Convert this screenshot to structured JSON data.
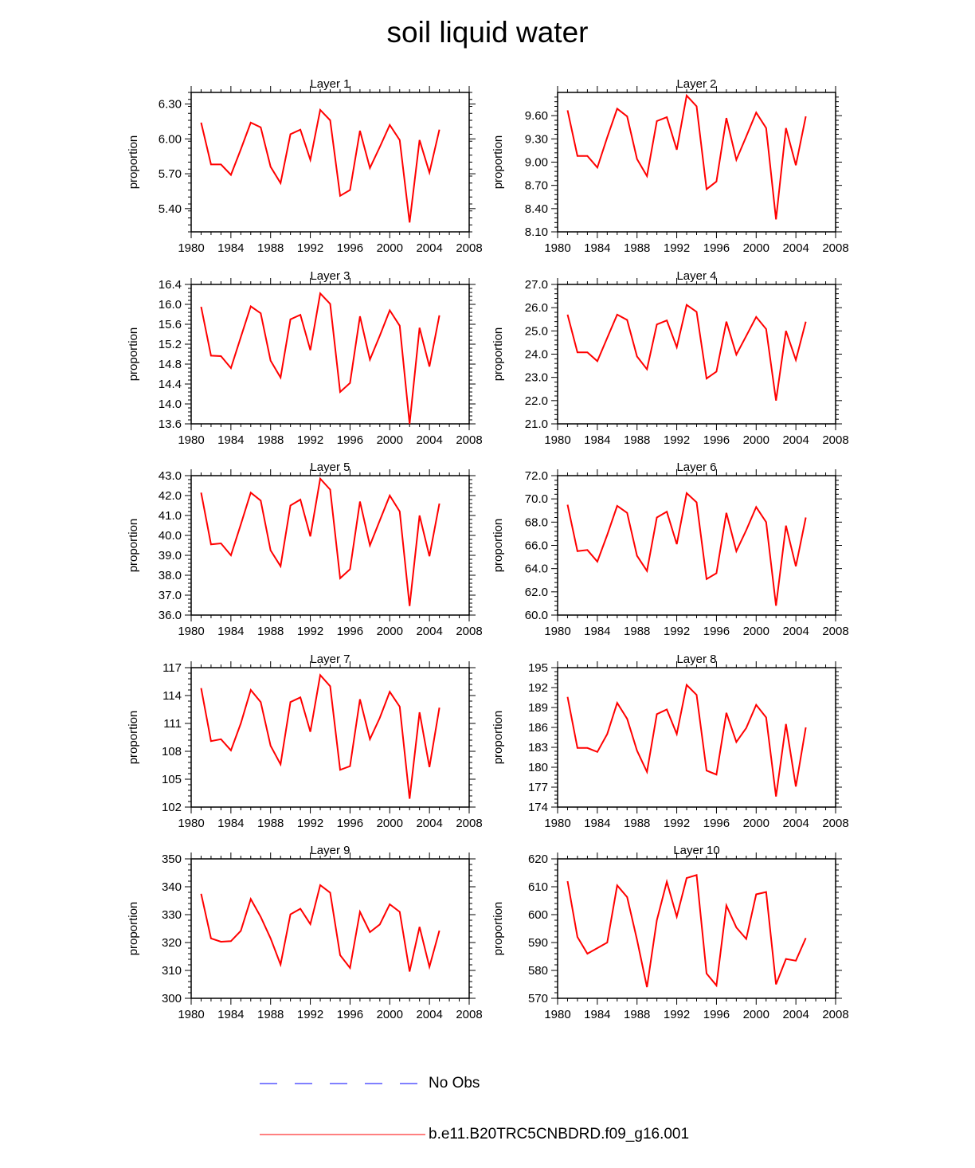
{
  "title": "soil liquid water",
  "chart_data": [
    {
      "type": "line",
      "title": "Layer 1",
      "xlabel": "",
      "ylabel": "proportion",
      "xlim": [
        1980,
        2008
      ],
      "xticks": [
        1980,
        1984,
        1988,
        1992,
        1996,
        2000,
        2004,
        2008
      ],
      "ylim": [
        5.2,
        6.4
      ],
      "yticks": [
        "5.40",
        "5.70",
        "6.00",
        "6.30"
      ],
      "series": [
        {
          "name": "b.e11.B20TRC5CNBDRD.f09_g16.001",
          "color": "#ff0000",
          "x": [
            1981,
            1982,
            1983,
            1984,
            1985,
            1986,
            1987,
            1988,
            1989,
            1990,
            1991,
            1992,
            1993,
            1994,
            1995,
            1996,
            1997,
            1998,
            1999,
            2000,
            2001,
            2002,
            2003,
            2004,
            2005
          ],
          "y": [
            6.14,
            5.78,
            5.78,
            5.69,
            5.91,
            6.14,
            6.1,
            5.76,
            5.62,
            6.04,
            6.08,
            5.82,
            6.25,
            6.16,
            5.51,
            5.56,
            6.07,
            5.75,
            5.93,
            6.12,
            5.99,
            5.28,
            5.99,
            5.71,
            6.08
          ]
        }
      ]
    },
    {
      "type": "line",
      "title": "Layer 2",
      "xlabel": "",
      "ylabel": "proportion",
      "xlim": [
        1980,
        2008
      ],
      "xticks": [
        1980,
        1984,
        1988,
        1992,
        1996,
        2000,
        2004,
        2008
      ],
      "ylim": [
        8.1,
        9.9
      ],
      "yticks": [
        "8.10",
        "8.40",
        "8.70",
        "9.00",
        "9.30",
        "9.60"
      ],
      "series": [
        {
          "name": "b.e11.B20TRC5CNBDRD.f09_g16.001",
          "color": "#ff0000",
          "x": [
            1981,
            1982,
            1983,
            1984,
            1985,
            1986,
            1987,
            1988,
            1989,
            1990,
            1991,
            1992,
            1993,
            1994,
            1995,
            1996,
            1997,
            1998,
            1999,
            2000,
            2001,
            2002,
            2003,
            2004,
            2005
          ],
          "y": [
            9.67,
            9.08,
            9.08,
            8.93,
            9.32,
            9.69,
            9.59,
            9.04,
            8.82,
            9.53,
            9.58,
            9.16,
            9.86,
            9.72,
            8.65,
            8.75,
            9.57,
            9.03,
            9.33,
            9.64,
            9.44,
            8.26,
            9.44,
            8.96,
            9.59
          ]
        }
      ]
    },
    {
      "type": "line",
      "title": "Layer 3",
      "xlabel": "",
      "ylabel": "proportion",
      "xlim": [
        1980,
        2008
      ],
      "xticks": [
        1980,
        1984,
        1988,
        1992,
        1996,
        2000,
        2004,
        2008
      ],
      "ylim": [
        13.6,
        16.4
      ],
      "yticks": [
        "13.6",
        "14.0",
        "14.4",
        "14.8",
        "15.2",
        "15.6",
        "16.0",
        "16.4"
      ],
      "series": [
        {
          "name": "b.e11.B20TRC5CNBDRD.f09_g16.001",
          "color": "#ff0000",
          "x": [
            1981,
            1982,
            1983,
            1984,
            1985,
            1986,
            1987,
            1988,
            1989,
            1990,
            1991,
            1992,
            1993,
            1994,
            1995,
            1996,
            1997,
            1998,
            1999,
            2000,
            2001,
            2002,
            2003,
            2004,
            2005
          ],
          "y": [
            15.95,
            14.97,
            14.96,
            14.72,
            15.34,
            15.96,
            15.82,
            14.87,
            14.53,
            15.7,
            15.79,
            15.08,
            16.22,
            16.01,
            14.24,
            14.42,
            15.76,
            14.89,
            15.37,
            15.88,
            15.57,
            13.6,
            15.53,
            14.75,
            15.78
          ]
        }
      ]
    },
    {
      "type": "line",
      "title": "Layer 4",
      "xlabel": "",
      "ylabel": "proportion",
      "xlim": [
        1980,
        2008
      ],
      "xticks": [
        1980,
        1984,
        1988,
        1992,
        1996,
        2000,
        2004,
        2008
      ],
      "ylim": [
        21.0,
        27.0
      ],
      "yticks": [
        "21.0",
        "22.0",
        "23.0",
        "24.0",
        "25.0",
        "26.0",
        "27.0"
      ],
      "series": [
        {
          "name": "b.e11.B20TRC5CNBDRD.f09_g16.001",
          "color": "#ff0000",
          "x": [
            1981,
            1982,
            1983,
            1984,
            1985,
            1986,
            1987,
            1988,
            1989,
            1990,
            1991,
            1992,
            1993,
            1994,
            1995,
            1996,
            1997,
            1998,
            1999,
            2000,
            2001,
            2002,
            2003,
            2004,
            2005
          ],
          "y": [
            25.7,
            24.08,
            24.08,
            23.7,
            24.7,
            25.7,
            25.47,
            23.9,
            23.35,
            25.28,
            25.45,
            24.3,
            26.12,
            25.82,
            22.95,
            23.25,
            25.4,
            23.98,
            24.78,
            25.6,
            25.08,
            22.0,
            25.0,
            23.75,
            25.4
          ]
        }
      ]
    },
    {
      "type": "line",
      "title": "Layer 5",
      "xlabel": "",
      "ylabel": "proportion",
      "xlim": [
        1980,
        2008
      ],
      "xticks": [
        1980,
        1984,
        1988,
        1992,
        1996,
        2000,
        2004,
        2008
      ],
      "ylim": [
        36.0,
        43.0
      ],
      "yticks": [
        "36.0",
        "37.0",
        "38.0",
        "39.0",
        "40.0",
        "41.0",
        "42.0",
        "43.0"
      ],
      "series": [
        {
          "name": "b.e11.B20TRC5CNBDRD.f09_g16.001",
          "color": "#ff0000",
          "x": [
            1981,
            1982,
            1983,
            1984,
            1985,
            1986,
            1987,
            1988,
            1989,
            1990,
            1991,
            1992,
            1993,
            1994,
            1995,
            1996,
            1997,
            1998,
            1999,
            2000,
            2001,
            2002,
            2003,
            2004,
            2005
          ],
          "y": [
            42.15,
            39.55,
            39.6,
            39.0,
            40.55,
            42.15,
            41.75,
            39.25,
            38.45,
            41.5,
            41.8,
            39.95,
            42.85,
            42.3,
            37.85,
            38.3,
            41.7,
            39.5,
            40.75,
            42.0,
            41.2,
            36.45,
            41.0,
            38.95,
            41.6
          ]
        }
      ]
    },
    {
      "type": "line",
      "title": "Layer 6",
      "xlabel": "",
      "ylabel": "proportion",
      "xlim": [
        1980,
        2008
      ],
      "xticks": [
        1980,
        1984,
        1988,
        1992,
        1996,
        2000,
        2004,
        2008
      ],
      "ylim": [
        60.0,
        72.0
      ],
      "yticks": [
        "60.0",
        "62.0",
        "64.0",
        "66.0",
        "68.0",
        "70.0",
        "72.0"
      ],
      "series": [
        {
          "name": "b.e11.B20TRC5CNBDRD.f09_g16.001",
          "color": "#ff0000",
          "x": [
            1981,
            1982,
            1983,
            1984,
            1985,
            1986,
            1987,
            1988,
            1989,
            1990,
            1991,
            1992,
            1993,
            1994,
            1995,
            1996,
            1997,
            1998,
            1999,
            2000,
            2001,
            2002,
            2003,
            2004,
            2005
          ],
          "y": [
            69.5,
            65.5,
            65.6,
            64.6,
            66.9,
            69.4,
            68.8,
            65.1,
            63.8,
            68.4,
            68.9,
            66.1,
            70.5,
            69.7,
            63.1,
            63.6,
            68.8,
            65.5,
            67.3,
            69.3,
            68.0,
            60.8,
            67.7,
            64.2,
            68.4
          ]
        }
      ]
    },
    {
      "type": "line",
      "title": "Layer 7",
      "xlabel": "",
      "ylabel": "proportion",
      "xlim": [
        1980,
        2008
      ],
      "xticks": [
        1980,
        1984,
        1988,
        1992,
        1996,
        2000,
        2004,
        2008
      ],
      "ylim": [
        102,
        117
      ],
      "yticks": [
        "102",
        "105",
        "108",
        "111",
        "114",
        "117"
      ],
      "series": [
        {
          "name": "b.e11.B20TRC5CNBDRD.f09_g16.001",
          "color": "#ff0000",
          "x": [
            1981,
            1982,
            1983,
            1984,
            1985,
            1986,
            1987,
            1988,
            1989,
            1990,
            1991,
            1992,
            1993,
            1994,
            1995,
            1996,
            1997,
            1998,
            1999,
            2000,
            2001,
            2002,
            2003,
            2004,
            2005
          ],
          "y": [
            114.8,
            109.1,
            109.3,
            108.1,
            111.0,
            114.6,
            113.3,
            108.6,
            106.6,
            113.3,
            113.8,
            110.1,
            116.2,
            115.0,
            106.0,
            106.4,
            113.6,
            109.3,
            111.6,
            114.4,
            112.8,
            102.9,
            112.2,
            106.3,
            112.7
          ]
        }
      ]
    },
    {
      "type": "line",
      "title": "Layer 8",
      "xlabel": "",
      "ylabel": "proportion",
      "xlim": [
        1980,
        2008
      ],
      "xticks": [
        1980,
        1984,
        1988,
        1992,
        1996,
        2000,
        2004,
        2008
      ],
      "ylim": [
        174,
        195
      ],
      "yticks": [
        "174",
        "177",
        "180",
        "183",
        "186",
        "189",
        "192",
        "195"
      ],
      "series": [
        {
          "name": "b.e11.B20TRC5CNBDRD.f09_g16.001",
          "color": "#ff0000",
          "x": [
            1981,
            1982,
            1983,
            1984,
            1985,
            1986,
            1987,
            1988,
            1989,
            1990,
            1991,
            1992,
            1993,
            1994,
            1995,
            1996,
            1997,
            1998,
            1999,
            2000,
            2001,
            2002,
            2003,
            2004,
            2005
          ],
          "y": [
            190.6,
            182.9,
            182.9,
            182.3,
            185.0,
            189.7,
            187.3,
            182.5,
            179.3,
            188.0,
            188.7,
            185.0,
            192.4,
            190.9,
            179.5,
            178.9,
            188.2,
            183.8,
            185.9,
            189.4,
            187.5,
            175.6,
            186.5,
            177.1,
            186.0
          ]
        }
      ]
    },
    {
      "type": "line",
      "title": "Layer 9",
      "xlabel": "",
      "ylabel": "proportion",
      "xlim": [
        1980,
        2008
      ],
      "xticks": [
        1980,
        1984,
        1988,
        1992,
        1996,
        2000,
        2004,
        2008
      ],
      "ylim": [
        300,
        350
      ],
      "yticks": [
        "300",
        "310",
        "320",
        "330",
        "340",
        "350"
      ],
      "series": [
        {
          "name": "b.e11.B20TRC5CNBDRD.f09_g16.001",
          "color": "#ff0000",
          "x": [
            1981,
            1982,
            1983,
            1984,
            1985,
            1986,
            1987,
            1988,
            1989,
            1990,
            1991,
            1992,
            1993,
            1994,
            1995,
            1996,
            1997,
            1998,
            1999,
            2000,
            2001,
            2002,
            2003,
            2004,
            2005
          ],
          "y": [
            337.5,
            321.5,
            320.3,
            320.5,
            324.2,
            335.6,
            329.2,
            321.5,
            312.1,
            330.1,
            332.1,
            326.6,
            340.6,
            337.9,
            315.5,
            310.9,
            331.0,
            323.7,
            326.5,
            333.7,
            331.0,
            309.6,
            325.6,
            311.3,
            324.3
          ]
        }
      ]
    },
    {
      "type": "line",
      "title": "Layer 10",
      "xlabel": "",
      "ylabel": "proportion",
      "xlim": [
        1980,
        2008
      ],
      "xticks": [
        1980,
        1984,
        1988,
        1992,
        1996,
        2000,
        2004,
        2008
      ],
      "ylim": [
        570,
        620
      ],
      "yticks": [
        "570",
        "580",
        "590",
        "600",
        "610",
        "620"
      ],
      "series": [
        {
          "name": "b.e11.B20TRC5CNBDRD.f09_g16.001",
          "color": "#ff0000",
          "x": [
            1981,
            1982,
            1983,
            1984,
            1985,
            1986,
            1987,
            1988,
            1989,
            1990,
            1991,
            1992,
            1993,
            1994,
            1995,
            1996,
            1997,
            1998,
            1999,
            2000,
            2001,
            2002,
            2003,
            2004,
            2005
          ],
          "y": [
            612.0,
            592.0,
            586.0,
            588.0,
            590.0,
            610.5,
            606.3,
            591.0,
            574.0,
            598.0,
            611.8,
            599.3,
            613.1,
            614.2,
            578.9,
            574.6,
            603.3,
            595.4,
            591.3,
            607.3,
            608.1,
            575.0,
            584.1,
            583.5,
            591.6
          ]
        }
      ]
    }
  ],
  "legend": [
    {
      "label": "No Obs",
      "color": "#0000ff",
      "dash": true
    },
    {
      "label": "b.e11.B20TRC5CNBDRD.f09_g16.001",
      "color": "#ff0000",
      "dash": false
    }
  ]
}
